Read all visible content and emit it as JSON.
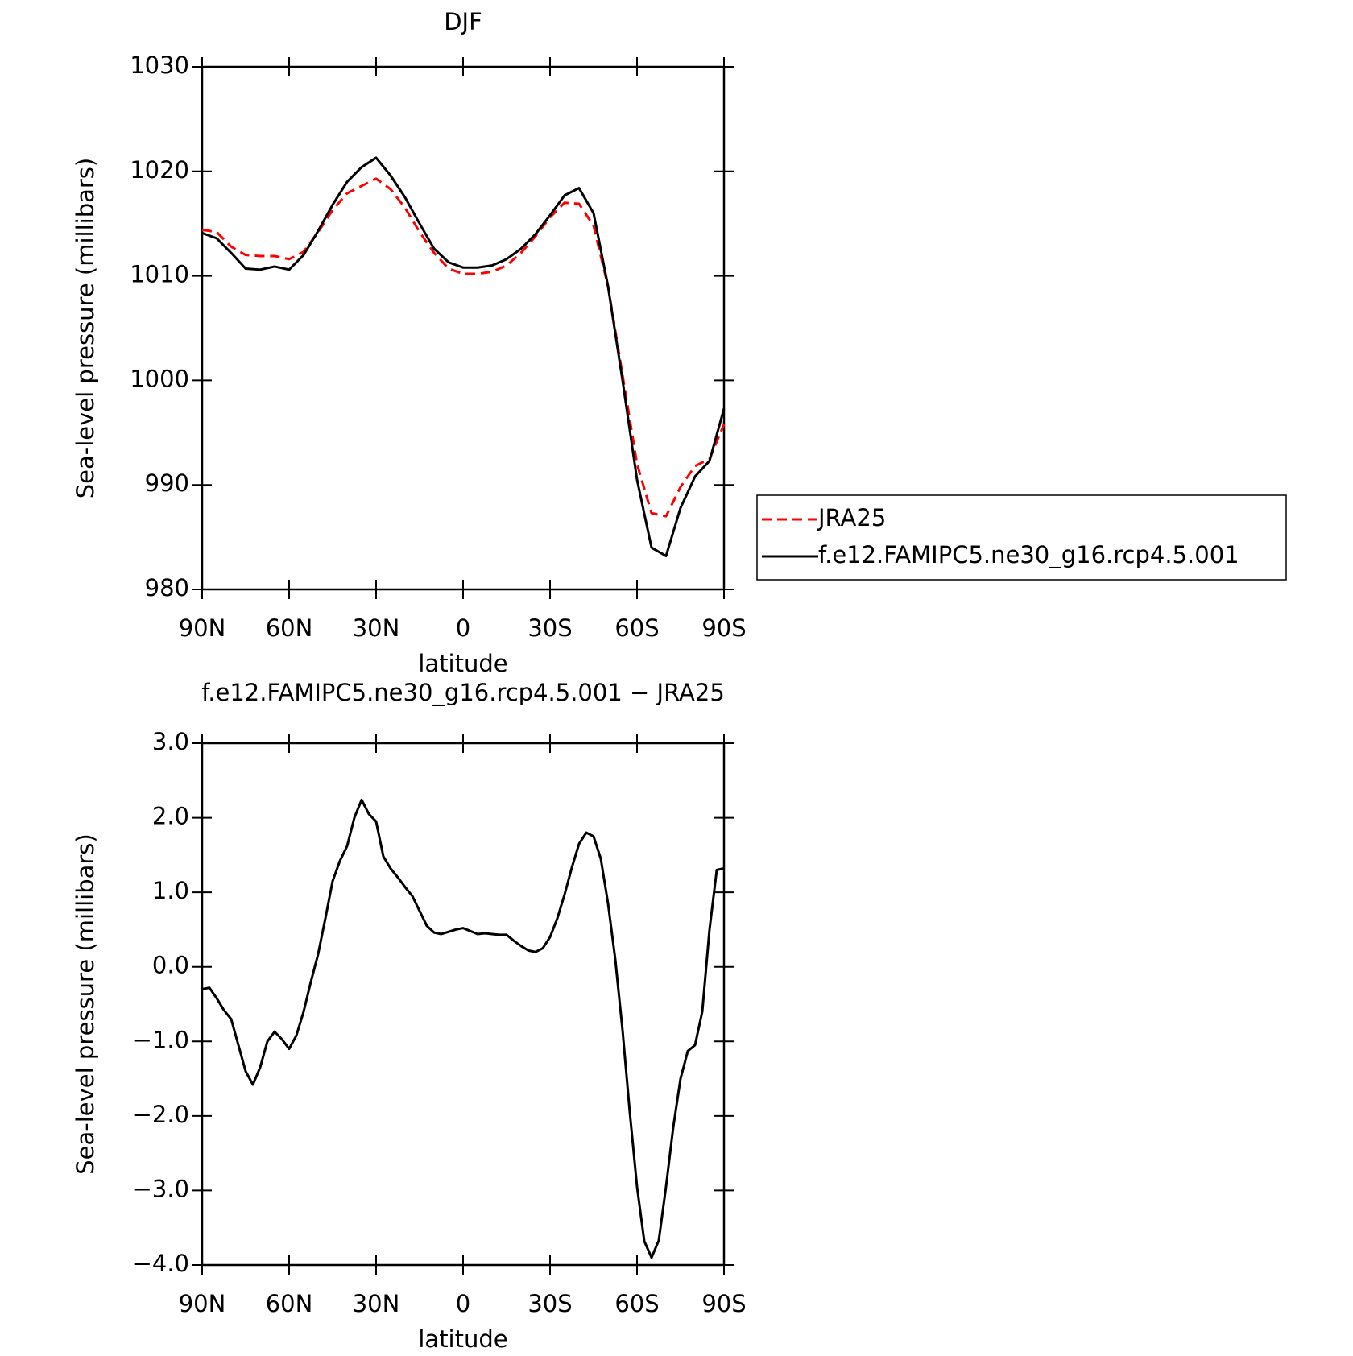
{
  "chart_data": [
    {
      "type": "line",
      "title": "DJF",
      "xlabel": "latitude",
      "ylabel": "Sea-level pressure (millibars)",
      "x": [
        90,
        85,
        80,
        75,
        70,
        65,
        60,
        55,
        50,
        45,
        40,
        35,
        30,
        25,
        20,
        15,
        10,
        5,
        0,
        -5,
        -10,
        -15,
        -20,
        -25,
        -30,
        -35,
        -40,
        -45,
        -50,
        -55,
        -60,
        -65,
        -70,
        -75,
        -80,
        -85,
        -90
      ],
      "series": [
        {
          "name": "JRA25",
          "color": "#ff0000",
          "dash": true,
          "values": [
            1014.4,
            1014.2,
            1012.8,
            1012.0,
            1011.9,
            1011.9,
            1011.6,
            1012.3,
            1014.2,
            1016.3,
            1017.9,
            1018.6,
            1019.3,
            1018.3,
            1016.5,
            1014.2,
            1012.2,
            1010.7,
            1010.2,
            1010.2,
            1010.4,
            1011.0,
            1012.2,
            1013.8,
            1015.6,
            1017.0,
            1016.9,
            1014.8,
            1009.0,
            1000.5,
            992.0,
            987.3,
            987.0,
            989.8,
            991.8,
            992.5,
            995.8
          ]
        },
        {
          "name": "f.e12.FAMIPC5.ne30_g16.rcp4.5.001",
          "color": "#000000",
          "dash": false,
          "values": [
            1014.1,
            1013.6,
            1012.2,
            1010.7,
            1010.6,
            1010.9,
            1010.6,
            1012.0,
            1014.3,
            1016.8,
            1019.0,
            1020.4,
            1021.3,
            1019.6,
            1017.5,
            1015.0,
            1012.6,
            1011.3,
            1010.8,
            1010.8,
            1011.0,
            1011.6,
            1012.6,
            1014.0,
            1015.8,
            1017.7,
            1018.4,
            1016.0,
            1009.0,
            1000.0,
            990.5,
            984.0,
            983.2,
            987.8,
            990.8,
            992.3,
            997.3
          ]
        }
      ],
      "xlim": [
        90,
        -90
      ],
      "xticks": [
        {
          "value": 90,
          "label": "90N"
        },
        {
          "value": 60,
          "label": "60N"
        },
        {
          "value": 30,
          "label": "30N"
        },
        0,
        {
          "value": -30,
          "label": "30S"
        },
        {
          "value": -60,
          "label": "60S"
        },
        {
          "value": -90,
          "label": "90S"
        }
      ],
      "ylim": [
        980,
        1030
      ],
      "yticks": [
        980,
        990,
        1000,
        1010,
        1020,
        1030
      ],
      "legend": "right"
    },
    {
      "type": "line",
      "title": "f.e12.FAMIPC5.ne30_g16.rcp4.5.001 − JRA25",
      "xlabel": "latitude",
      "ylabel": "Sea-level pressure (millibars)",
      "x": [
        90,
        87.5,
        85,
        82.5,
        80,
        77.5,
        75,
        72.5,
        70,
        67.5,
        65,
        62.5,
        60,
        57.5,
        55,
        52.5,
        50,
        47.5,
        45,
        42.5,
        40,
        37.5,
        35,
        32.5,
        30,
        27.5,
        25,
        22.5,
        20,
        17.5,
        15,
        12.5,
        10,
        7.5,
        5,
        2.5,
        0,
        -2.5,
        -5,
        -7.5,
        -10,
        -12.5,
        -15,
        -17.5,
        -20,
        -22.5,
        -25,
        -27.5,
        -30,
        -32.5,
        -35,
        -37.5,
        -40,
        -42.5,
        -45,
        -47.5,
        -50,
        -52.5,
        -55,
        -57.5,
        -60,
        -62.5,
        -65,
        -67.5,
        -70,
        -72.5,
        -75,
        -77.5,
        -80,
        -82.5,
        -85,
        -87.5,
        -90
      ],
      "series": [
        {
          "name": null,
          "color": "#000000",
          "dash": false,
          "values": [
            -0.3,
            -0.28,
            -0.42,
            -0.58,
            -0.7,
            -1.05,
            -1.4,
            -1.58,
            -1.35,
            -1.0,
            -0.87,
            -0.97,
            -1.1,
            -0.92,
            -0.6,
            -0.2,
            0.17,
            0.65,
            1.15,
            1.42,
            1.62,
            2.0,
            2.24,
            2.05,
            1.95,
            1.48,
            1.32,
            1.2,
            1.07,
            0.95,
            0.75,
            0.55,
            0.46,
            0.44,
            0.47,
            0.5,
            0.52,
            0.48,
            0.44,
            0.45,
            0.44,
            0.43,
            0.43,
            0.35,
            0.28,
            0.22,
            0.2,
            0.25,
            0.4,
            0.65,
            0.97,
            1.33,
            1.65,
            1.8,
            1.75,
            1.45,
            0.85,
            0.1,
            -0.85,
            -1.95,
            -2.95,
            -3.68,
            -3.9,
            -3.67,
            -2.95,
            -2.15,
            -1.5,
            -1.13,
            -1.05,
            -0.6,
            0.5,
            1.3,
            1.32
          ]
        }
      ],
      "xlim": [
        90,
        -90
      ],
      "xticks": [
        {
          "value": 90,
          "label": "90N"
        },
        {
          "value": 60,
          "label": "60N"
        },
        {
          "value": 30,
          "label": "30N"
        },
        0,
        {
          "value": -30,
          "label": "30S"
        },
        {
          "value": -60,
          "label": "60S"
        },
        {
          "value": -90,
          "label": "90S"
        }
      ],
      "ylim": [
        -4,
        3
      ],
      "yticks": [
        {
          "value": -4,
          "label": "−4.0"
        },
        {
          "value": -3,
          "label": "−3.0"
        },
        {
          "value": -2,
          "label": "−2.0"
        },
        {
          "value": -1,
          "label": "−1.0"
        },
        {
          "value": 0,
          "label": "0.0"
        },
        {
          "value": 1,
          "label": "1.0"
        },
        {
          "value": 2,
          "label": "2.0"
        },
        {
          "value": 3,
          "label": "3.0"
        }
      ]
    }
  ]
}
